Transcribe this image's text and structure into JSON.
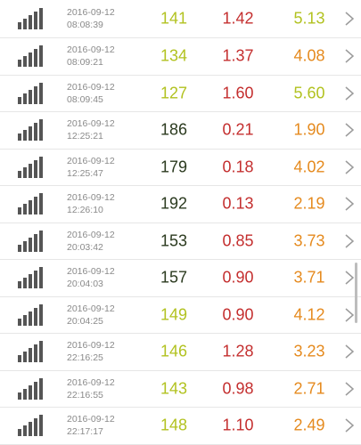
{
  "colors": {
    "lime": "#b2c220",
    "dark": "#2b3a1f",
    "red": "#c42f2f",
    "orange": "#e58a1e",
    "text_muted": "#8a8a8a",
    "bar_icon": "#555555",
    "chevron": "#9b9b9b"
  },
  "rows": [
    {
      "date": "2016-09-12",
      "time": "08:08:39",
      "v1": "141",
      "v1_color": "#b2c220",
      "v2": "1.42",
      "v3": "5.13",
      "v3_color": "#b2c220"
    },
    {
      "date": "2016-09-12",
      "time": "08:09:21",
      "v1": "134",
      "v1_color": "#b2c220",
      "v2": "1.37",
      "v3": "4.08",
      "v3_color": "#e58a1e"
    },
    {
      "date": "2016-09-12",
      "time": "08:09:45",
      "v1": "127",
      "v1_color": "#b2c220",
      "v2": "1.60",
      "v3": "5.60",
      "v3_color": "#b2c220"
    },
    {
      "date": "2016-09-12",
      "time": "12:25:21",
      "v1": "186",
      "v1_color": "#2b3a1f",
      "v2": "0.21",
      "v3": "1.90",
      "v3_color": "#e58a1e"
    },
    {
      "date": "2016-09-12",
      "time": "12:25:47",
      "v1": "179",
      "v1_color": "#2b3a1f",
      "v2": "0.18",
      "v3": "4.02",
      "v3_color": "#e58a1e"
    },
    {
      "date": "2016-09-12",
      "time": "12:26:10",
      "v1": "192",
      "v1_color": "#2b3a1f",
      "v2": "0.13",
      "v3": "2.19",
      "v3_color": "#e58a1e"
    },
    {
      "date": "2016-09-12",
      "time": "20:03:42",
      "v1": "153",
      "v1_color": "#2b3a1f",
      "v2": "0.85",
      "v3": "3.73",
      "v3_color": "#e58a1e"
    },
    {
      "date": "2016-09-12",
      "time": "20:04:03",
      "v1": "157",
      "v1_color": "#2b3a1f",
      "v2": "0.90",
      "v3": "3.71",
      "v3_color": "#e58a1e"
    },
    {
      "date": "2016-09-12",
      "time": "20:04:25",
      "v1": "149",
      "v1_color": "#b2c220",
      "v2": "0.90",
      "v3": "4.12",
      "v3_color": "#e58a1e"
    },
    {
      "date": "2016-09-12",
      "time": "22:16:25",
      "v1": "146",
      "v1_color": "#b2c220",
      "v2": "1.28",
      "v3": "3.23",
      "v3_color": "#e58a1e"
    },
    {
      "date": "2016-09-12",
      "time": "22:16:55",
      "v1": "143",
      "v1_color": "#b2c220",
      "v2": "0.98",
      "v3": "2.71",
      "v3_color": "#e58a1e"
    },
    {
      "date": "2016-09-12",
      "time": "22:17:17",
      "v1": "148",
      "v1_color": "#b2c220",
      "v2": "1.10",
      "v3": "2.49",
      "v3_color": "#e58a1e"
    }
  ]
}
